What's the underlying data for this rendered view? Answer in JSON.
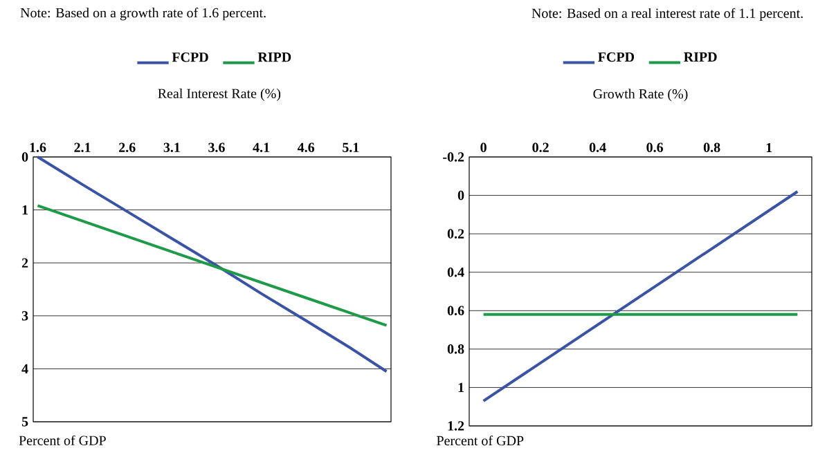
{
  "chart_data": [
    {
      "type": "line",
      "annotations": [
        "Note: Based on a growth rate of 1.6 percent."
      ],
      "xlabel": "Real Interest Rate (%)",
      "ylabel": "Percent of GDP",
      "x": [
        1.6,
        2.1,
        2.6,
        3.1,
        3.6,
        4.1,
        4.6,
        5.1,
        5.5
      ],
      "series": [
        {
          "name": "FCPD",
          "color": "#3a53a4",
          "values": [
            0,
            0.52,
            1.03,
            1.54,
            2.05,
            2.58,
            3.09,
            3.61,
            4.05
          ]
        },
        {
          "name": "RIPD",
          "color": "#1e9a48",
          "values": [
            0.92,
            1.21,
            1.5,
            1.79,
            2.08,
            2.37,
            2.66,
            2.95,
            3.18
          ]
        }
      ],
      "xlim": [
        1.55,
        5.55
      ],
      "ylim": [
        5,
        0
      ],
      "xticks": [
        1.6,
        2.1,
        2.6,
        3.1,
        3.6,
        4.1,
        4.6,
        5.1
      ],
      "yticks": [
        0,
        1,
        2,
        3,
        4,
        5
      ],
      "grid": "y",
      "legend": "top"
    },
    {
      "type": "line",
      "annotations": [
        "Note: Based on a real interest rate of 1.1 percent."
      ],
      "xlabel": "Growth Rate (%)",
      "ylabel": "Percent of GDP",
      "x": [
        0,
        1.1
      ],
      "series": [
        {
          "name": "FCPD",
          "color": "#3a53a4",
          "values": [
            1.07,
            -0.02
          ]
        },
        {
          "name": "RIPD",
          "color": "#1e9a48",
          "values": [
            0.62,
            0.62
          ]
        }
      ],
      "xlim": [
        -0.05,
        1.15
      ],
      "ylim": [
        1.2,
        -0.2
      ],
      "xticks": [
        0,
        0.2,
        0.4,
        0.6,
        0.8,
        1
      ],
      "yticks": [
        -0.2,
        0,
        0.2,
        0.4,
        0.6,
        0.8,
        1,
        1.2
      ],
      "grid": "y",
      "legend": "top"
    }
  ]
}
